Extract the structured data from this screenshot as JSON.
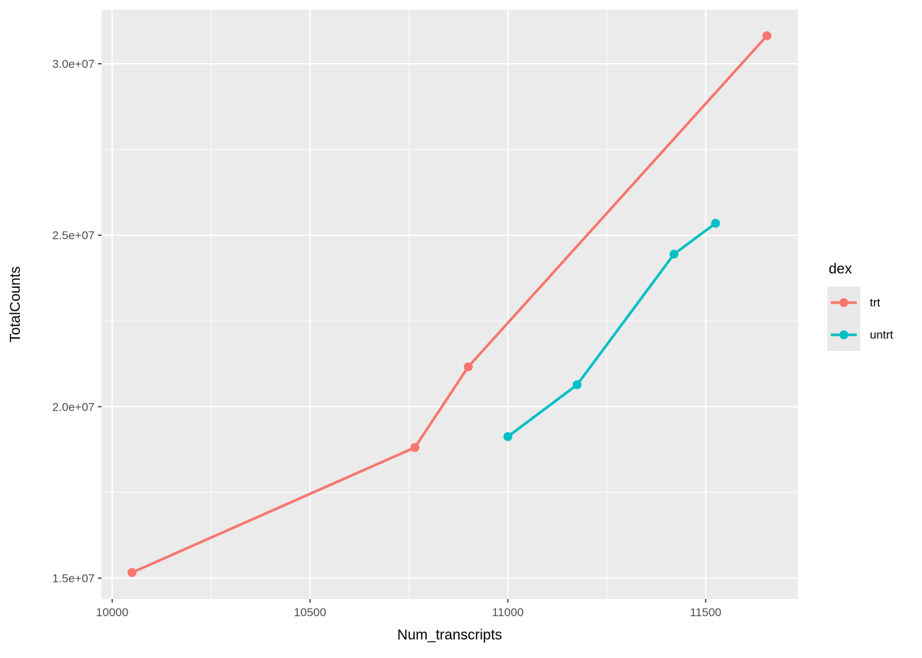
{
  "chart_data": {
    "type": "line",
    "title": "",
    "xlabel": "Num_transcripts",
    "ylabel": "TotalCounts",
    "grid": "major-and-minor",
    "legend": {
      "title": "dex",
      "position": "right"
    },
    "x_axis": {
      "domain": [
        9973,
        11733
      ],
      "ticks": [
        10000,
        10500,
        11000,
        11500
      ],
      "tick_labels": [
        "10000",
        "10500",
        "11000",
        "11500"
      ],
      "minor_ticks": [
        10250,
        10750,
        11250
      ]
    },
    "y_axis": {
      "domain": [
        14390000,
        31580000
      ],
      "ticks": [
        15000000,
        20000000,
        25000000,
        30000000
      ],
      "tick_labels": [
        "1.5e+07",
        "2.0e+07",
        "2.5e+07",
        "3.0e+07"
      ],
      "minor_ticks": [
        17500000,
        22500000,
        27500000
      ]
    },
    "series": [
      {
        "name": "trt",
        "color": "#F8766D",
        "points": [
          [
            10050,
            15163415
          ],
          [
            10765,
            18809481
          ],
          [
            10900,
            21164133
          ],
          [
            11655,
            30818215
          ]
        ]
      },
      {
        "name": "untrt",
        "color": "#00BFC4",
        "points": [
          [
            11000,
            19126151
          ],
          [
            11175,
            20637971
          ],
          [
            11420,
            24448408
          ],
          [
            11525,
            25348649
          ]
        ]
      }
    ]
  },
  "colors": {
    "background": "#FFFFFF",
    "panel_bg": "#EBEBEB",
    "grid": "#FFFFFF",
    "tick_mark": "#333333",
    "tick_text": "#4D4D4D",
    "axis_title_text": "#000000",
    "legend_key_bg": "#E9E9E9"
  }
}
